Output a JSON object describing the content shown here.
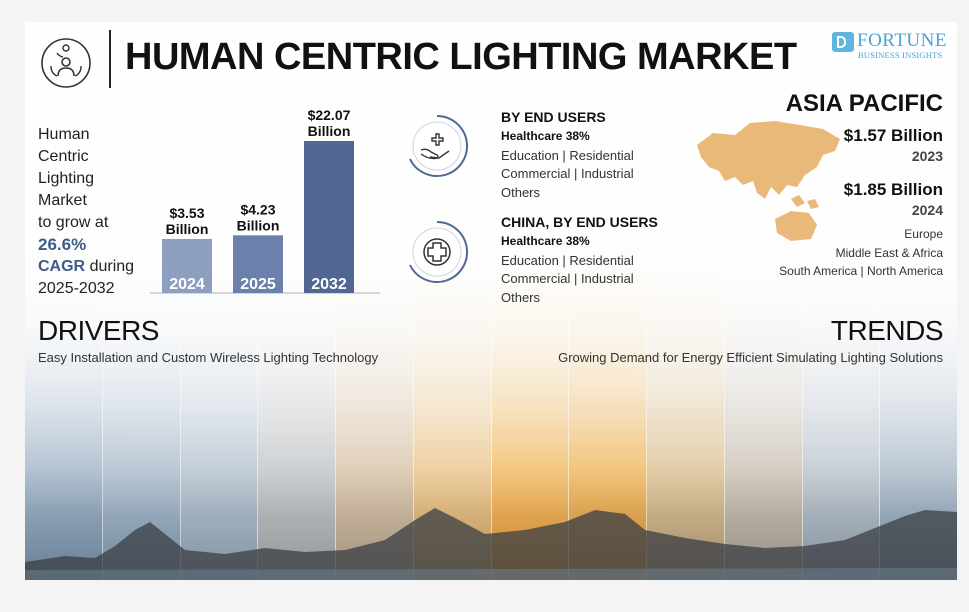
{
  "header": {
    "title": "HUMAN CENTRIC LIGHTING MARKET",
    "brand_name": "FORTUNE",
    "brand_sub": "BUSINESS INSIGHTS"
  },
  "growth": {
    "lines": [
      "Human",
      "Centric",
      "Lighting",
      "Market",
      "to grow at"
    ],
    "cagr_value": "26.6%",
    "cagr_label": "CAGR",
    "during": "during",
    "period": "2025-2032"
  },
  "chart_data": {
    "type": "bar",
    "categories": [
      "2024",
      "2025",
      "2032"
    ],
    "values": [
      3.53,
      4.23,
      22.07
    ],
    "value_labels": [
      "$3.53",
      "$4.23",
      "$22.07"
    ],
    "unit_label": "Billion",
    "title": "",
    "xlabel": "",
    "ylabel": "",
    "colors": [
      "#8d9ec0",
      "#6b81ab",
      "#4f6792"
    ],
    "grid": false
  },
  "end_users": {
    "title": "BY END USERS",
    "top": "Healthcare 38%",
    "line1": "Education  |  Residential",
    "line2": "Commercial  |  Industrial",
    "line3": "Others"
  },
  "china": {
    "title": "CHINA, BY END USERS",
    "top": "Healthcare 38%",
    "line1": "Education  |  Residential",
    "line2": "Commercial  |  Industrial",
    "line3": "Others"
  },
  "region": {
    "title": "ASIA PACIFIC",
    "value1": "$1.57 Billion",
    "year1": "2023",
    "value2": "$1.85 Billion",
    "year2": "2024",
    "others1": "Europe",
    "others2": "Middle East & Africa",
    "others3": "South America  |  North America"
  },
  "drivers": {
    "title": "DRIVERS",
    "text": "Easy Installation and Custom Wireless Lighting Technology"
  },
  "trends": {
    "title": "TRENDS",
    "text": "Growing Demand for Energy Efficient Simulating Lighting Solutions"
  },
  "icons": {
    "logo": "day-night-person-icon",
    "end_users": "hands-health-cross-icon",
    "china": "medical-cross-icon"
  },
  "colors": {
    "bar_label_text": "#ffffff",
    "accent_blue": "#3d5d88",
    "map_fill": "#e9b97a",
    "brand": "#4aa3d6"
  }
}
